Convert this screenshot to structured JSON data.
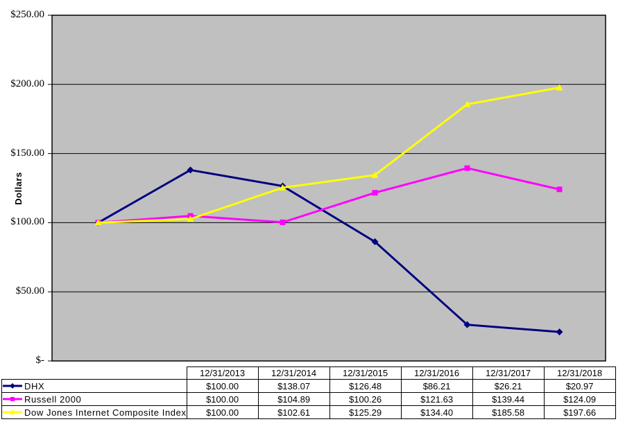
{
  "chart": {
    "y_axis_title": "Dollars",
    "y_ticks": [
      {
        "label": "$250.00",
        "value": 250
      },
      {
        "label": "$200.00",
        "value": 200
      },
      {
        "label": "$150.00",
        "value": 150
      },
      {
        "label": "$100.00",
        "value": 100
      },
      {
        "label": "$50.00",
        "value": 50
      },
      {
        "label": "$-",
        "value": 0
      }
    ],
    "plot_background": "#C0C0C0",
    "gridline_color": "#000000"
  },
  "chart_data": {
    "type": "line",
    "title": "",
    "xlabel": "",
    "ylabel": "Dollars",
    "ylim": [
      0,
      250
    ],
    "ytick_interval": 50,
    "grid": true,
    "legend_position": "table-left",
    "categories": [
      "12/31/2013",
      "12/31/2014",
      "12/31/2015",
      "12/31/2016",
      "12/31/2017",
      "12/31/2018"
    ],
    "series": [
      {
        "name": "DHX",
        "color": "#000080",
        "marker": "diamond",
        "values": [
          100.0,
          138.07,
          126.48,
          86.21,
          26.21,
          20.97
        ]
      },
      {
        "name": "Russell 2000",
        "color": "#FF00FF",
        "marker": "square",
        "values": [
          100.0,
          104.89,
          100.26,
          121.63,
          139.44,
          124.09
        ]
      },
      {
        "name": "Dow Jones Internet Composite Index",
        "color": "#FFFF00",
        "marker": "triangle",
        "values": [
          100.0,
          102.61,
          125.29,
          134.4,
          185.58,
          197.66
        ]
      }
    ]
  },
  "table": {
    "column_headers": [
      "12/31/2013",
      "12/31/2014",
      "12/31/2015",
      "12/31/2016",
      "12/31/2017",
      "12/31/2018"
    ],
    "rows": [
      {
        "label": "DHX",
        "values": [
          "$100.00",
          "$138.07",
          "$126.48",
          "$86.21",
          "$26.21",
          "$20.97"
        ]
      },
      {
        "label": "Russell 2000",
        "values": [
          "$100.00",
          "$104.89",
          "$100.26",
          "$121.63",
          "$139.44",
          "$124.09"
        ]
      },
      {
        "label": "Dow Jones Internet Composite Index",
        "values": [
          "$100.00",
          "$102.61",
          "$125.29",
          "$134.40",
          "$185.58",
          "$197.66"
        ]
      }
    ]
  }
}
